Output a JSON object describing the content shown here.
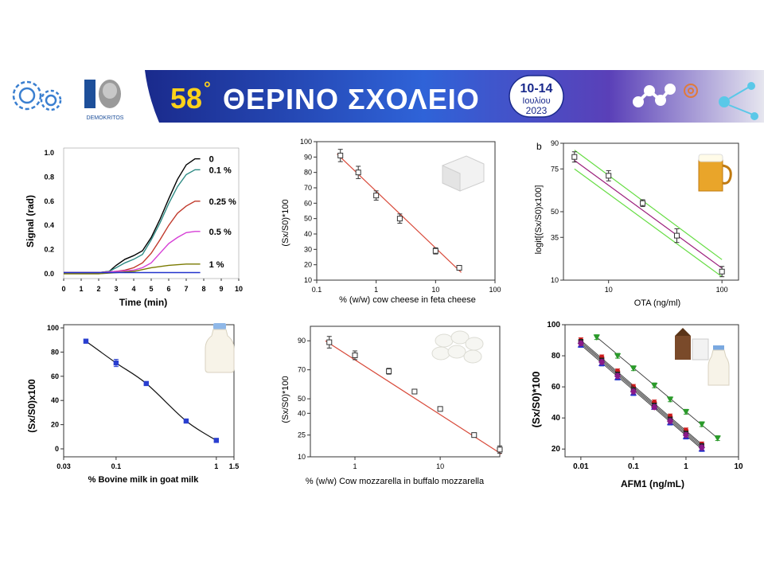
{
  "header": {
    "title_number": "58",
    "title_degree": "°",
    "title_text": "ΘΕΡΙΝΟ ΣΧΟΛΕΙΟ",
    "date_range": "10-14",
    "month": "Ιουλίου",
    "year": "2023",
    "logo_caption": "DEMOKRITOS",
    "colors": {
      "banner_dark": "#1a2a8c",
      "banner_mid": "#2f63d8",
      "title_yellow": "#ffd21a"
    }
  },
  "chart_data": [
    {
      "type": "line",
      "xlabel": "Time (min)",
      "ylabel": "Signal (rad)",
      "xlim": [
        0,
        10
      ],
      "ylim": [
        0,
        1.0
      ],
      "x_ticks": [
        "0",
        "1",
        "2",
        "3",
        "4",
        "5",
        "6",
        "7",
        "8",
        "9",
        "10"
      ],
      "y_ticks": [
        "0.0",
        "0.2",
        "0.4",
        "0.6",
        "0.8",
        "1.0"
      ],
      "series": [
        {
          "name": "0",
          "color": "#000000",
          "x": [
            0,
            1,
            2,
            2.6,
            3,
            3.5,
            4,
            4.5,
            5,
            5.5,
            6,
            6.5,
            7,
            7.5,
            7.8
          ],
          "y": [
            0.01,
            0.01,
            0.01,
            0.02,
            0.07,
            0.12,
            0.15,
            0.19,
            0.3,
            0.45,
            0.62,
            0.78,
            0.9,
            0.95,
            0.95
          ]
        },
        {
          "name": "0.1 %",
          "color": "#2e8b84",
          "x": [
            0,
            1,
            2,
            2.6,
            3,
            3.5,
            4,
            4.5,
            5,
            5.5,
            6,
            6.5,
            7,
            7.5,
            7.8
          ],
          "y": [
            0.01,
            0.01,
            0.01,
            0.02,
            0.05,
            0.09,
            0.12,
            0.16,
            0.28,
            0.42,
            0.58,
            0.72,
            0.82,
            0.86,
            0.86
          ]
        },
        {
          "name": "0.25 %",
          "color": "#c0392b",
          "x": [
            0,
            1,
            2,
            3,
            3.5,
            4,
            4.5,
            5,
            5.5,
            6,
            6.5,
            7,
            7.5,
            7.8
          ],
          "y": [
            0.01,
            0.01,
            0.01,
            0.02,
            0.03,
            0.05,
            0.09,
            0.17,
            0.28,
            0.4,
            0.5,
            0.56,
            0.6,
            0.6
          ]
        },
        {
          "name": "0.5 %",
          "color": "#d63fd6",
          "x": [
            0,
            1,
            2,
            3,
            4,
            4.5,
            5,
            5.5,
            6,
            6.5,
            7,
            7.5,
            7.8
          ],
          "y": [
            0.01,
            0.01,
            0.01,
            0.02,
            0.03,
            0.05,
            0.09,
            0.17,
            0.25,
            0.3,
            0.34,
            0.35,
            0.35
          ]
        },
        {
          "name": "1 %",
          "color": "#7a7a00",
          "x": [
            0,
            2,
            3,
            4,
            5,
            6,
            7,
            7.8
          ],
          "y": [
            0.0,
            0.0,
            0.01,
            0.02,
            0.05,
            0.07,
            0.08,
            0.08
          ]
        },
        {
          "name": "",
          "color": "#2233cc",
          "x": [
            0,
            2,
            4,
            6,
            7.8
          ],
          "y": [
            0.01,
            0.01,
            0.01,
            0.01,
            0.01
          ]
        }
      ],
      "annotations": [
        "0",
        "0.1 %",
        "0.25 %",
        "0.5 %",
        "1 %"
      ]
    },
    {
      "type": "scatter",
      "xscale": "log",
      "xlabel": "% (w/w) cow cheese in feta cheese",
      "ylabel": "(Sx/S0)*100",
      "xlim": [
        0.1,
        100
      ],
      "ylim": [
        10,
        100
      ],
      "x_ticks": [
        "0.1",
        "1",
        "10",
        "100"
      ],
      "y_ticks": [
        "10",
        "20",
        "30",
        "40",
        "50",
        "60",
        "70",
        "80",
        "90",
        "100"
      ],
      "x": [
        0.25,
        0.5,
        1,
        2.5,
        10,
        25
      ],
      "y": [
        91,
        80,
        65,
        50,
        29,
        18
      ],
      "error": [
        4,
        4,
        3,
        3,
        2,
        1.5
      ],
      "fit_line": {
        "x": [
          0.22,
          27
        ],
        "y": [
          92,
          15
        ],
        "color": "#d84a3a"
      }
    },
    {
      "type": "scatter",
      "xscale": "log",
      "label": "b",
      "xlabel": "OTA (ng/ml)",
      "ylabel": "logit[(Sx/S0)x100]",
      "xlim": [
        4,
        140
      ],
      "ylim": [
        10,
        90
      ],
      "x_ticks": [
        "10",
        "100"
      ],
      "y_ticks": [
        "10",
        "35",
        "50",
        "75",
        "90"
      ],
      "x": [
        5,
        10,
        20,
        40,
        100
      ],
      "y": [
        82,
        71,
        55,
        36,
        15
      ],
      "error": [
        3,
        3,
        2,
        4,
        3
      ],
      "fit_line": {
        "x": [
          5,
          100
        ],
        "y": [
          80,
          17
        ],
        "color": "#9b1f7c"
      },
      "confidence_band": {
        "color": "#66dd44",
        "upper": [
          {
            "x": 5,
            "y": 86
          },
          {
            "x": 100,
            "y": 22
          }
        ],
        "lower": [
          {
            "x": 5,
            "y": 75
          },
          {
            "x": 100,
            "y": 12
          }
        ]
      }
    },
    {
      "type": "line",
      "xscale": "log",
      "xlabel": "% Bovine milk in goat milk",
      "ylabel": "(Sx/S0)x100",
      "xlim": [
        0.03,
        1.5
      ],
      "ylim": [
        0,
        100
      ],
      "x_ticks": [
        "0.03",
        "0.1",
        "1",
        "1.5"
      ],
      "y_ticks": [
        "0",
        "20",
        "40",
        "60",
        "80",
        "100"
      ],
      "x": [
        0.05,
        0.1,
        0.2,
        0.5,
        1.0
      ],
      "y": [
        89,
        71,
        54,
        23,
        7
      ],
      "error": [
        1,
        3,
        1,
        1,
        1
      ],
      "color": "#2a3fd0"
    },
    {
      "type": "scatter",
      "xscale": "log",
      "xlabel": "% (w/w) Cow mozzarella in buffalo mozzarella",
      "ylabel": "(Sx/S0)*100",
      "xlim": [
        0.3,
        50
      ],
      "ylim": [
        10,
        100
      ],
      "x_ticks": [
        "1",
        "10"
      ],
      "y_ticks": [
        "10",
        "25",
        "40",
        "50",
        "70",
        "90"
      ],
      "x": [
        0.5,
        1,
        2.5,
        5,
        10,
        25,
        50
      ],
      "y": [
        89,
        80,
        69,
        55,
        43,
        25,
        15
      ],
      "error": [
        4,
        3,
        2,
        1.5,
        1,
        1.5,
        2.5
      ],
      "fit_line": {
        "x": [
          0.45,
          52
        ],
        "y": [
          90,
          12
        ],
        "color": "#d84a3a"
      }
    },
    {
      "type": "scatter",
      "xscale": "log",
      "xlabel": "AFM1 (ng/mL)",
      "ylabel": "(Sx/S0)*100",
      "xlim": [
        0.005,
        10
      ],
      "ylim": [
        15,
        100
      ],
      "x_ticks": [
        "0.01",
        "0.1",
        "1",
        "10"
      ],
      "y_ticks": [
        "20",
        "40",
        "60",
        "80",
        "100"
      ],
      "series": [
        {
          "color": "#cc1a1a",
          "marker": "circle",
          "x": [
            0.01,
            0.025,
            0.05,
            0.1,
            0.25,
            0.5,
            1,
            2
          ],
          "y": [
            90,
            79,
            70,
            60,
            50,
            41,
            32,
            23
          ]
        },
        {
          "color": "#222222",
          "marker": "square",
          "x": [
            0.01,
            0.025,
            0.05,
            0.1,
            0.25,
            0.5,
            1,
            2
          ],
          "y": [
            89,
            77,
            68,
            58,
            48,
            39,
            30,
            22
          ]
        },
        {
          "color": "#2233cc",
          "marker": "triangle-up",
          "x": [
            0.01,
            0.025,
            0.05,
            0.1,
            0.25,
            0.5,
            1,
            2
          ],
          "y": [
            87,
            75,
            66,
            56,
            47,
            37,
            28,
            20
          ]
        },
        {
          "color": "#8a1a8a",
          "marker": "diamond",
          "x": [
            0.01,
            0.025,
            0.05,
            0.1,
            0.25,
            0.5,
            1,
            2
          ],
          "y": [
            88,
            76,
            67,
            57,
            47,
            38,
            29,
            21
          ]
        },
        {
          "color": "#2a9a2a",
          "marker": "triangle-down",
          "x": [
            0.02,
            0.05,
            0.1,
            0.25,
            0.5,
            1,
            2,
            4
          ],
          "y": [
            92,
            80,
            72,
            61,
            52,
            44,
            36,
            27
          ]
        }
      ]
    }
  ]
}
